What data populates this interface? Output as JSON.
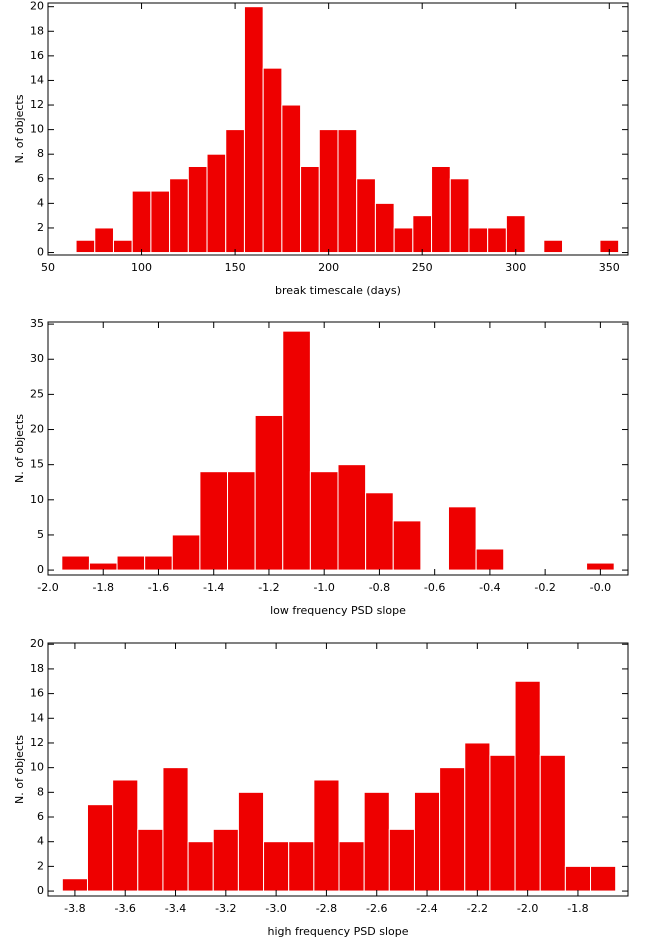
{
  "chart_data": [
    {
      "type": "histogram",
      "x_label": "break timescale (days)",
      "y_label": "N. of objects",
      "color": "#ee0000",
      "bins": [
        65,
        75,
        85,
        95,
        105,
        115,
        125,
        135,
        145,
        155,
        165,
        175,
        185,
        195,
        205,
        215,
        225,
        235,
        245,
        255,
        265,
        275,
        285,
        295,
        305,
        315,
        325,
        335,
        345,
        355
      ],
      "values": [
        1,
        2,
        1,
        5,
        5,
        6,
        7,
        8,
        10,
        20,
        15,
        12,
        7,
        10,
        10,
        6,
        4,
        2,
        3,
        7,
        6,
        2,
        2,
        3,
        0,
        1,
        0,
        0,
        1
      ],
      "xlim": [
        50,
        360
      ],
      "xticks": [
        50,
        100,
        150,
        200,
        250,
        300,
        350
      ],
      "ylim": [
        -0.2,
        20.3
      ],
      "yticks": [
        0,
        2,
        4,
        6,
        8,
        10,
        12,
        14,
        16,
        18,
        20
      ]
    },
    {
      "type": "histogram",
      "x_label": "low frequency PSD slope",
      "y_label": "N. of objects",
      "color": "#ee0000",
      "bins": [
        -1.95,
        -1.85,
        -1.75,
        -1.65,
        -1.55,
        -1.45,
        -1.35,
        -1.25,
        -1.15,
        -1.05,
        -0.95,
        -0.85,
        -0.75,
        -0.65,
        -0.55,
        -0.45,
        -0.35,
        -0.25,
        -0.15,
        -0.05,
        0.05
      ],
      "values": [
        2,
        1,
        2,
        2,
        5,
        14,
        14,
        22,
        34,
        14,
        15,
        11,
        7,
        0,
        9,
        3,
        0,
        0,
        0,
        1
      ],
      "xlim": [
        -2.0,
        0.1
      ],
      "xticks": [
        {
          "value": -2,
          "label": "-2.0"
        },
        -1.8,
        -1.6,
        -1.4,
        -1.2,
        {
          "value": -1,
          "label": "-1.0"
        },
        -0.8,
        -0.6,
        -0.4,
        -0.2,
        {
          "value": 0,
          "label": "-0.0"
        }
      ],
      "ylim": [
        -0.7,
        35.3
      ],
      "yticks": [
        0,
        5,
        10,
        15,
        20,
        25,
        30,
        35
      ]
    },
    {
      "type": "histogram",
      "x_label": "high frequency PSD slope",
      "y_label": "N. of objects",
      "color": "#ee0000",
      "bins": [
        -3.85,
        -3.75,
        -3.65,
        -3.55,
        -3.45,
        -3.35,
        -3.25,
        -3.15,
        -3.05,
        -2.95,
        -2.85,
        -2.75,
        -2.65,
        -2.55,
        -2.45,
        -2.35,
        -2.25,
        -2.15,
        -2.05,
        -1.95,
        -1.85,
        -1.75,
        -1.65
      ],
      "values": [
        1,
        7,
        9,
        5,
        10,
        4,
        5,
        8,
        4,
        4,
        9,
        4,
        8,
        5,
        8,
        10,
        12,
        11,
        17,
        11,
        2,
        2
      ],
      "xlim": [
        -3.907,
        -1.601
      ],
      "xticks": [
        -3.8,
        -3.6,
        -3.4,
        -3.2,
        {
          "value": -3,
          "label": "-3.0"
        },
        -2.8,
        -2.6,
        -2.4,
        -2.2,
        {
          "value": -2,
          "label": "-2.0"
        },
        -1.8
      ],
      "ylim": [
        -0.4,
        20.1
      ],
      "yticks": [
        0,
        2,
        4,
        6,
        8,
        10,
        12,
        14,
        16,
        18,
        20
      ]
    }
  ]
}
